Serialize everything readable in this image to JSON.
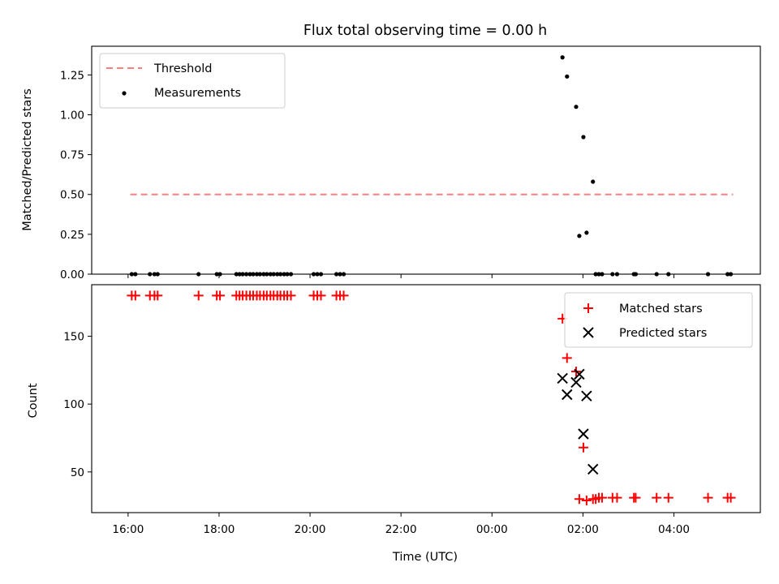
{
  "chart_data": {
    "type": "scatter",
    "title": "Flux total observing time = 0.00 h",
    "xlabel": "Time (UTC)",
    "x_unit": "hours from 00:00 (UTC), previous evening negative",
    "xlim": [
      -8.8,
      5.9
    ],
    "x_ticks": [
      {
        "value": -8,
        "label": "16:00"
      },
      {
        "value": -6,
        "label": "18:00"
      },
      {
        "value": -4,
        "label": "20:00"
      },
      {
        "value": -2,
        "label": "22:00"
      },
      {
        "value": 0,
        "label": "00:00"
      },
      {
        "value": 2,
        "label": "02:00"
      },
      {
        "value": 4,
        "label": "04:00"
      }
    ],
    "panels": [
      {
        "name": "ratio",
        "ylabel": "Matched/Predicted stars",
        "ylim": [
          0,
          1.43
        ],
        "y_ticks": [
          0,
          0.25,
          0.5,
          0.75,
          1.0,
          1.25
        ],
        "y_tick_labels": [
          "0.00",
          "0.25",
          "0.50",
          "0.75",
          "1.00",
          "1.25"
        ],
        "legend_position": "top-left",
        "threshold": {
          "name": "Threshold",
          "value": 0.5,
          "x_range": [
            -7.95,
            5.3
          ],
          "color": "#ff7f7f"
        },
        "series": [
          {
            "name": "Measurements",
            "marker": "dot",
            "color": "#000000",
            "points": [
              [
                -7.92,
                0
              ],
              [
                -7.84,
                0
              ],
              [
                -7.52,
                0
              ],
              [
                -7.42,
                0
              ],
              [
                -7.35,
                0
              ],
              [
                -6.45,
                0
              ],
              [
                -6.05,
                0
              ],
              [
                -5.98,
                0
              ],
              [
                -5.62,
                0
              ],
              [
                -5.55,
                0
              ],
              [
                -5.48,
                0
              ],
              [
                -5.4,
                0
              ],
              [
                -5.32,
                0
              ],
              [
                -5.25,
                0
              ],
              [
                -5.17,
                0
              ],
              [
                -5.1,
                0
              ],
              [
                -5.02,
                0
              ],
              [
                -4.95,
                0
              ],
              [
                -4.87,
                0
              ],
              [
                -4.8,
                0
              ],
              [
                -4.72,
                0
              ],
              [
                -4.65,
                0
              ],
              [
                -4.57,
                0
              ],
              [
                -4.5,
                0
              ],
              [
                -4.42,
                0
              ],
              [
                -3.92,
                0
              ],
              [
                -3.84,
                0
              ],
              [
                -3.76,
                0
              ],
              [
                -3.42,
                0
              ],
              [
                -3.34,
                0
              ],
              [
                -3.26,
                0
              ],
              [
                1.55,
                1.36
              ],
              [
                1.65,
                1.24
              ],
              [
                1.85,
                1.05
              ],
              [
                1.92,
                0.24
              ],
              [
                2.01,
                0.86
              ],
              [
                2.08,
                0.26
              ],
              [
                2.22,
                0.58
              ],
              [
                2.28,
                0
              ],
              [
                2.35,
                0
              ],
              [
                2.42,
                0
              ],
              [
                2.65,
                0
              ],
              [
                2.75,
                0
              ],
              [
                3.12,
                0
              ],
              [
                3.16,
                0
              ],
              [
                3.62,
                0
              ],
              [
                3.88,
                0
              ],
              [
                4.75,
                0
              ],
              [
                5.18,
                0
              ],
              [
                5.25,
                0
              ]
            ]
          }
        ]
      },
      {
        "name": "count",
        "ylabel": "Count",
        "ylim": [
          20,
          188
        ],
        "y_ticks": [
          50,
          100,
          150
        ],
        "y_tick_labels": [
          "50",
          "100",
          "150"
        ],
        "legend_position": "top-right",
        "series": [
          {
            "name": "Matched stars",
            "marker": "plus",
            "color": "#ff0000",
            "points": [
              [
                -7.92,
                180
              ],
              [
                -7.84,
                180
              ],
              [
                -7.52,
                180
              ],
              [
                -7.42,
                180
              ],
              [
                -7.35,
                180
              ],
              [
                -6.45,
                180
              ],
              [
                -6.05,
                180
              ],
              [
                -5.98,
                180
              ],
              [
                -5.62,
                180
              ],
              [
                -5.55,
                180
              ],
              [
                -5.48,
                180
              ],
              [
                -5.4,
                180
              ],
              [
                -5.32,
                180
              ],
              [
                -5.25,
                180
              ],
              [
                -5.17,
                180
              ],
              [
                -5.1,
                180
              ],
              [
                -5.02,
                180
              ],
              [
                -4.95,
                180
              ],
              [
                -4.87,
                180
              ],
              [
                -4.8,
                180
              ],
              [
                -4.72,
                180
              ],
              [
                -4.65,
                180
              ],
              [
                -4.57,
                180
              ],
              [
                -4.5,
                180
              ],
              [
                -4.42,
                180
              ],
              [
                -3.92,
                180
              ],
              [
                -3.84,
                180
              ],
              [
                -3.76,
                180
              ],
              [
                -3.42,
                180
              ],
              [
                -3.34,
                180
              ],
              [
                -3.26,
                180
              ],
              [
                1.55,
                163
              ],
              [
                1.65,
                134
              ],
              [
                1.85,
                124
              ],
              [
                1.92,
                30
              ],
              [
                2.01,
                68
              ],
              [
                2.08,
                29
              ],
              [
                2.22,
                30
              ],
              [
                2.28,
                30
              ],
              [
                2.35,
                31
              ],
              [
                2.42,
                31
              ],
              [
                2.65,
                31
              ],
              [
                2.75,
                31
              ],
              [
                3.12,
                31
              ],
              [
                3.16,
                31
              ],
              [
                3.62,
                31
              ],
              [
                3.88,
                31
              ],
              [
                4.75,
                31
              ],
              [
                5.18,
                31
              ],
              [
                5.25,
                31
              ]
            ]
          },
          {
            "name": "Predicted stars",
            "marker": "x",
            "color": "#000000",
            "points": [
              [
                1.55,
                119
              ],
              [
                1.65,
                107
              ],
              [
                1.85,
                116
              ],
              [
                1.92,
                122
              ],
              [
                2.01,
                78
              ],
              [
                2.08,
                106
              ],
              [
                2.22,
                52
              ]
            ]
          }
        ]
      }
    ]
  }
}
